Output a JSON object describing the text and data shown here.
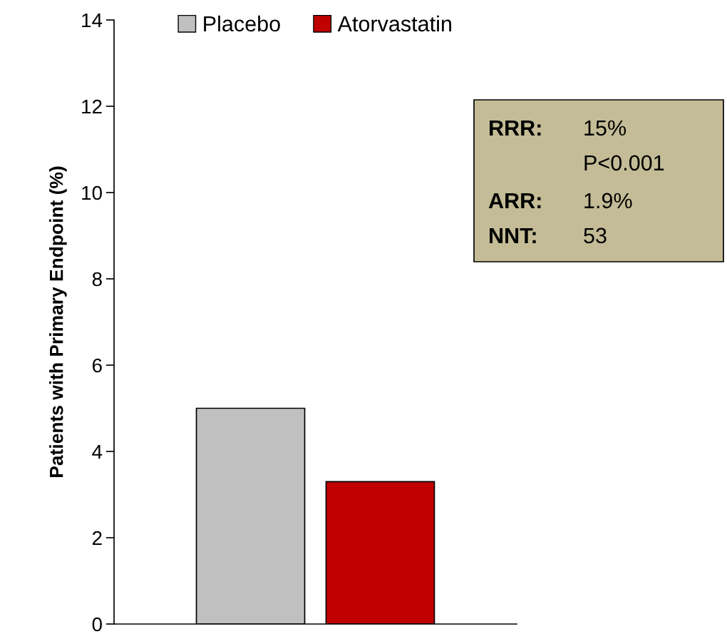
{
  "chart_data": {
    "type": "bar",
    "ylabel": "Patients with Primary Endpoint (%)",
    "categories": [
      null
    ],
    "series": [
      {
        "name": "Placebo",
        "color": "#c0c0c0",
        "values": [
          5.0
        ]
      },
      {
        "name": "Atorvastatin",
        "color": "#c00000",
        "values": [
          3.3
        ]
      }
    ],
    "ylim": [
      0,
      14
    ],
    "yticks": [
      0,
      2,
      4,
      6,
      8,
      10,
      12,
      14
    ],
    "grid": false,
    "legend": "top",
    "annotations": [
      "RRR: 15%",
      "P<0.001",
      "ARR: 1.9%",
      "NNT: 53"
    ]
  }
}
